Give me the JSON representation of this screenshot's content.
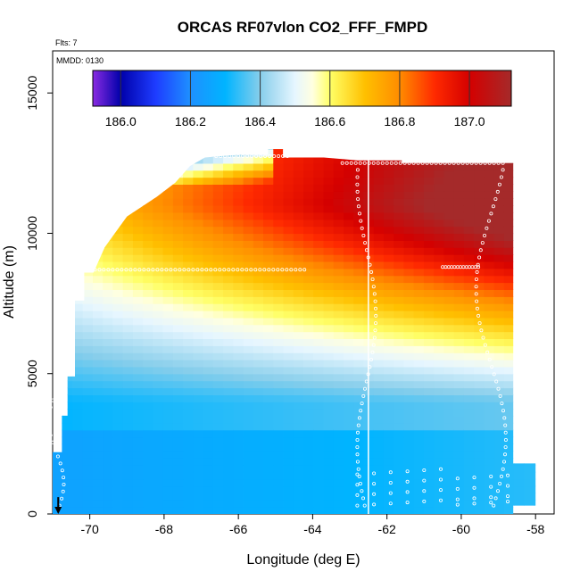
{
  "chart_data": {
    "type": "heatmap",
    "title": "ORCAS RF07vlon CO2_FFF_FMPD",
    "annotations": {
      "flts": "Flts: 7",
      "mmdd": "MMDD: 0130"
    },
    "xlabel": "Longitude (deg E)",
    "ylabel": "Altitude (m)",
    "xlim": [
      -71.0,
      -57.5
    ],
    "ylim": [
      0,
      16500
    ],
    "x_ticks": [
      -70,
      -68,
      -66,
      -64,
      -62,
      -60,
      -58
    ],
    "x_tick_labels": [
      "-70",
      "-68",
      "-66",
      "-64",
      "-62",
      "-60",
      "-58"
    ],
    "y_ticks": [
      0,
      5000,
      10000,
      15000
    ],
    "y_tick_labels": [
      "0",
      "5000",
      "10000",
      "15000"
    ],
    "colorbar": {
      "range": [
        185.92,
        187.12
      ],
      "ticks": [
        186.0,
        186.2,
        186.4,
        186.6,
        186.8,
        187.0
      ],
      "tick_labels": [
        "186.0",
        "186.2",
        "186.4",
        "186.6",
        "186.8",
        "187.0"
      ],
      "color_stops": [
        [
          185.92,
          "#8a2be2"
        ],
        [
          186.0,
          "#0000aa"
        ],
        [
          186.1,
          "#1e3cff"
        ],
        [
          186.2,
          "#1e90ff"
        ],
        [
          186.3,
          "#00b4ff"
        ],
        [
          186.4,
          "#87ceeb"
        ],
        [
          186.5,
          "#e6f6ff"
        ],
        [
          186.55,
          "#ffffe0"
        ],
        [
          186.6,
          "#ffff66"
        ],
        [
          186.7,
          "#ffc000"
        ],
        [
          186.8,
          "#ff8c00"
        ],
        [
          186.9,
          "#ff2a00"
        ],
        [
          187.0,
          "#d40000"
        ],
        [
          187.12,
          "#a52a2a"
        ]
      ]
    },
    "marker_longitude": -62.5,
    "arrow_longitude": -70.85,
    "domain_outline": [
      [
        -71.0,
        0
      ],
      [
        -71.0,
        2200
      ],
      [
        -70.75,
        2200
      ],
      [
        -70.75,
        3500
      ],
      [
        -70.6,
        3500
      ],
      [
        -70.6,
        4900
      ],
      [
        -70.4,
        4900
      ],
      [
        -70.4,
        7600
      ],
      [
        -70.15,
        7600
      ],
      [
        -70.15,
        8600
      ],
      [
        -69.9,
        8600
      ],
      [
        -69.6,
        9500
      ],
      [
        -69.0,
        10600
      ],
      [
        -68.2,
        11300
      ],
      [
        -67.7,
        11800
      ],
      [
        -67.5,
        12100
      ],
      [
        -67.3,
        12400
      ],
      [
        -66.9,
        12700
      ],
      [
        -66.0,
        12800
      ],
      [
        -65.2,
        12800
      ],
      [
        -65.2,
        13000
      ],
      [
        -64.8,
        13000
      ],
      [
        -64.8,
        12700
      ],
      [
        -63.7,
        12700
      ],
      [
        -62.8,
        12600
      ],
      [
        -62.0,
        12600
      ],
      [
        -61.6,
        12600
      ],
      [
        -61.6,
        12500
      ],
      [
        -58.6,
        12500
      ],
      [
        -58.6,
        1800
      ],
      [
        -58.0,
        1800
      ],
      [
        -58.0,
        300
      ],
      [
        -58.6,
        300
      ],
      [
        -58.6,
        0
      ]
    ]
  }
}
